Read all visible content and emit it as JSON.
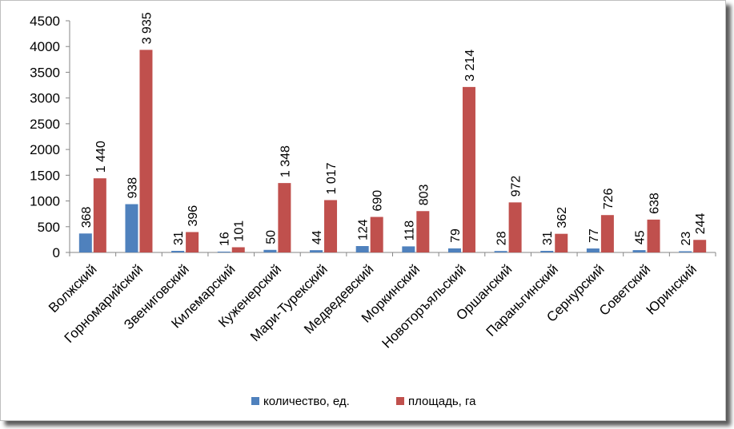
{
  "chart_data": {
    "type": "bar",
    "categories": [
      "Волжский",
      "Горномарийский",
      "Звениговский",
      "Килемарский",
      "Куженерский",
      "Мари-Турекский",
      "Медведевский",
      "Моркинский",
      "Новоторъяльский",
      "Оршанский",
      "Параньгинский",
      "Сернурский",
      "Советский",
      "Юринский"
    ],
    "series": [
      {
        "name": "количество, ед.",
        "color": "#4F81BD",
        "values": [
          368,
          938,
          31,
          16,
          50,
          44,
          124,
          118,
          79,
          28,
          31,
          77,
          45,
          23
        ],
        "labels": [
          "368",
          "938",
          "31",
          "16",
          "50",
          "44",
          "124",
          "118",
          "79",
          "28",
          "31",
          "77",
          "45",
          "23"
        ]
      },
      {
        "name": "площадь, га",
        "color": "#C0504D",
        "values": [
          1440,
          3935,
          396,
          101,
          1348,
          1017,
          690,
          803,
          3214,
          972,
          362,
          726,
          638,
          244
        ],
        "labels": [
          "1 440",
          "3 935",
          "396",
          "101",
          "1 348",
          "1 017",
          "690",
          "803",
          "3 214",
          "972",
          "362",
          "726",
          "638",
          "244"
        ]
      }
    ],
    "ylim": [
      0,
      4500
    ],
    "yticks": [
      0,
      500,
      1000,
      1500,
      2000,
      2500,
      3000,
      3500,
      4000,
      4500
    ],
    "legend_position": "bottom",
    "grid": false,
    "title": "",
    "xlabel": "",
    "ylabel": ""
  }
}
